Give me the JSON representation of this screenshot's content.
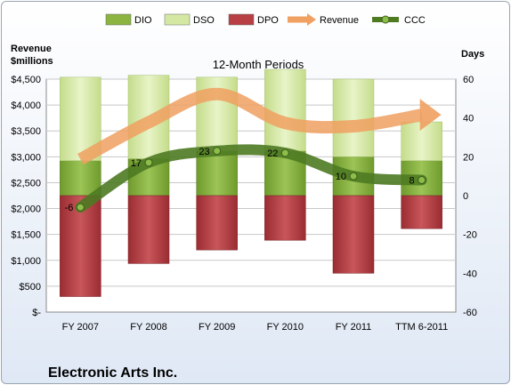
{
  "chart_data": {
    "type": "bar",
    "title": "12-Month Periods",
    "company": "Electronic Arts Inc.",
    "left_axis_label": "Revenue\n$millions",
    "right_axis_label": "Days",
    "categories": [
      "FY 2007",
      "FY 2008",
      "FY 2009",
      "FY 2010",
      "FY 2011",
      "TTM 6-2011"
    ],
    "left_axis": {
      "min": 0,
      "max": 4500,
      "step": 500,
      "ticks": [
        "$-",
        "$500",
        "$1,000",
        "$1,500",
        "$2,000",
        "$2,500",
        "$3,000",
        "$3,500",
        "$4,000",
        "$4,500"
      ]
    },
    "right_axis": {
      "min": -60,
      "max": 60,
      "step": 20,
      "ticks": [
        "-60",
        "-40",
        "-20",
        "0",
        "20",
        "40",
        "60"
      ]
    },
    "legend": [
      "DIO",
      "DSO",
      "DPO",
      "Revenue",
      "CCC"
    ],
    "series": [
      {
        "name": "DIO",
        "axis": "days",
        "color": "#8cb440",
        "values": [
          18,
          19,
          23,
          23,
          20,
          18
        ]
      },
      {
        "name": "DSO",
        "axis": "days",
        "color": "#d4e8a4",
        "values": [
          43,
          43,
          38,
          42,
          40,
          20
        ]
      },
      {
        "name": "DPO",
        "axis": "days",
        "color": "#b84044",
        "values": [
          52,
          35,
          28,
          23,
          40,
          17
        ]
      },
      {
        "name": "Revenue",
        "axis": "revenue",
        "color": "#f0a060",
        "values": [
          2951,
          3665,
          4212,
          3654,
          3589,
          3810
        ]
      },
      {
        "name": "CCC",
        "axis": "days",
        "color": "#4e7a22",
        "values": [
          -6,
          17,
          23,
          22,
          10,
          8
        ]
      }
    ],
    "data_labels": [
      "-6",
      "17",
      "23",
      "22",
      "10",
      "8"
    ],
    "grid": true,
    "legend_position": "top"
  }
}
